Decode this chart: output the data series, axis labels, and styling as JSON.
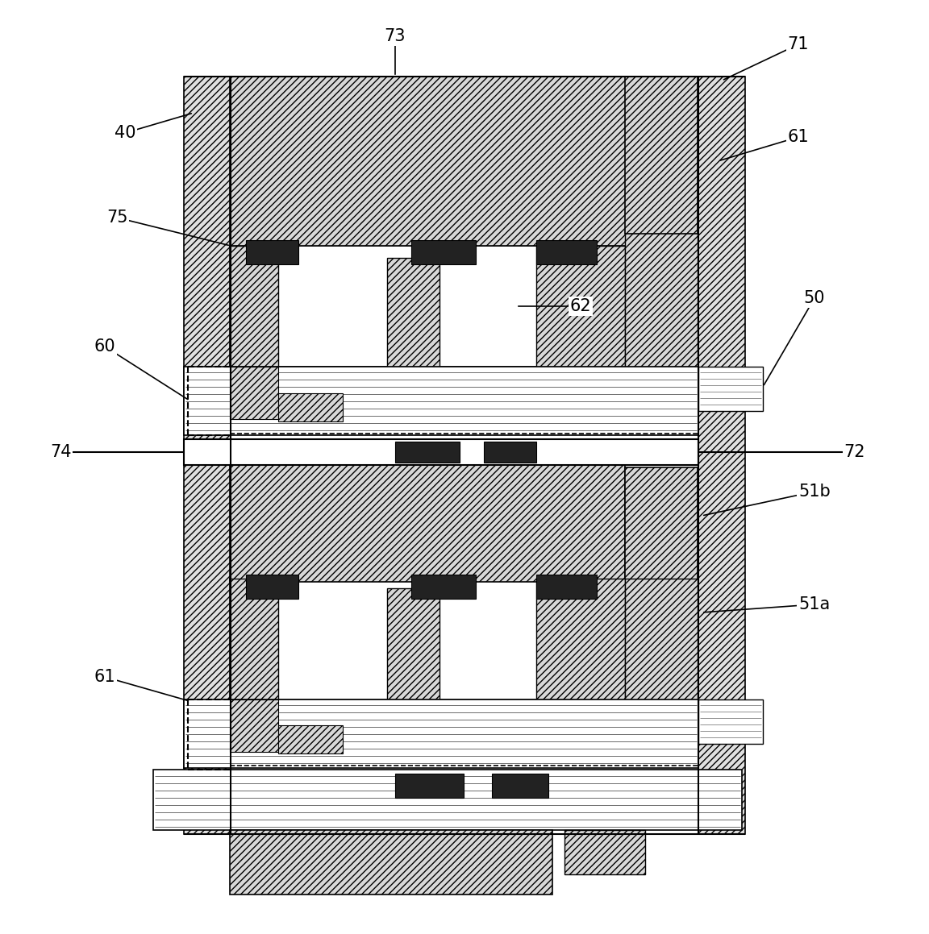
{
  "bg_color": "#ffffff",
  "dc": "#222222",
  "fig_width": 11.52,
  "fig_height": 11.59,
  "dpi": 100,
  "xlim": [
    0,
    1152
  ],
  "ylim": [
    0,
    1159
  ]
}
